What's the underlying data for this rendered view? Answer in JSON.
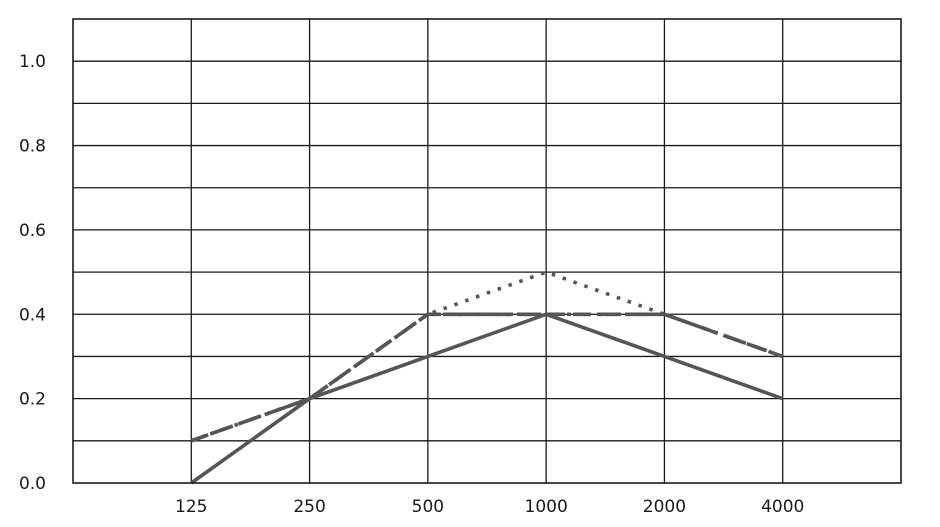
{
  "chart_data": {
    "type": "line",
    "title": "",
    "xlabel": "",
    "ylabel": "",
    "categories": [
      "125",
      "250",
      "500",
      "1000",
      "2000",
      "4000"
    ],
    "yticks": [
      "0.0",
      "0.2",
      "0.4",
      "0.6",
      "0.8",
      "1.0"
    ],
    "ylim": [
      0,
      1.1
    ],
    "grid": true,
    "series": [
      {
        "style": "solid",
        "values": [
          0.0,
          0.2,
          0.3,
          0.4,
          0.3,
          0.2
        ]
      },
      {
        "style": "dashed",
        "values": [
          0.1,
          0.2,
          0.4,
          0.4,
          0.4,
          0.3
        ]
      },
      {
        "style": "dotted",
        "values": [
          0.1,
          0.2,
          0.4,
          0.5,
          0.4,
          0.3
        ]
      },
      {
        "style": "dash-dot",
        "values": [
          0.1,
          0.2,
          0.4,
          0.4,
          0.4,
          0.3
        ]
      }
    ],
    "colors": {
      "line": "#555555",
      "grid": "#1a1a1a"
    }
  }
}
